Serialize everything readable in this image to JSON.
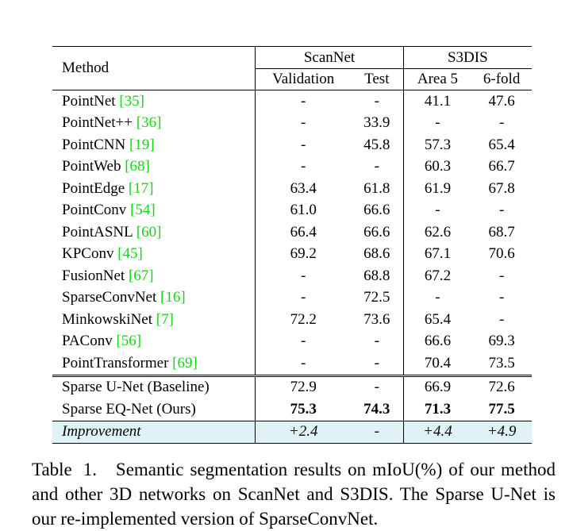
{
  "header": {
    "method": "Method",
    "scannet": "ScanNet",
    "s3dis": "S3DIS",
    "validation": "Validation",
    "test": "Test",
    "area5": "Area 5",
    "sixfold": "6-fold"
  },
  "rows": [
    {
      "name": "PointNet",
      "cite": "[35]",
      "val": "-",
      "test": "-",
      "a5": "41.1",
      "f6": "47.6"
    },
    {
      "name": "PointNet++",
      "cite": "[36]",
      "val": "-",
      "test": "33.9",
      "a5": "-",
      "f6": "-"
    },
    {
      "name": "PointCNN",
      "cite": "[19]",
      "val": "-",
      "test": "45.8",
      "a5": "57.3",
      "f6": "65.4"
    },
    {
      "name": "PointWeb",
      "cite": "[68]",
      "val": "-",
      "test": "-",
      "a5": "60.3",
      "f6": "66.7"
    },
    {
      "name": "PointEdge",
      "cite": "[17]",
      "val": "63.4",
      "test": "61.8",
      "a5": "61.9",
      "f6": "67.8"
    },
    {
      "name": "PointConv",
      "cite": "[54]",
      "val": "61.0",
      "test": "66.6",
      "a5": "-",
      "f6": "-"
    },
    {
      "name": "PointASNL",
      "cite": "[60]",
      "val": "66.4",
      "test": "66.6",
      "a5": "62.6",
      "f6": "68.7"
    },
    {
      "name": "KPConv",
      "cite": "[45]",
      "val": "69.2",
      "test": "68.6",
      "a5": "67.1",
      "f6": "70.6"
    },
    {
      "name": "FusionNet",
      "cite": "[67]",
      "val": "-",
      "test": "68.8",
      "a5": "67.2",
      "f6": "-"
    },
    {
      "name": "SparseConvNet",
      "cite": "[16]",
      "val": "-",
      "test": "72.5",
      "a5": "-",
      "f6": "-"
    },
    {
      "name": "MinkowskiNet",
      "cite": "[7]",
      "val": "72.2",
      "test": "73.6",
      "a5": "65.4",
      "f6": "-"
    },
    {
      "name": "PAConv",
      "cite": "[56]",
      "val": "-",
      "test": "-",
      "a5": "66.6",
      "f6": "69.3"
    },
    {
      "name": "PointTransformer",
      "cite": "[69]",
      "val": "-",
      "test": "-",
      "a5": "70.4",
      "f6": "73.5"
    }
  ],
  "baseline": {
    "name": "Sparse U-Net (Baseline)",
    "val": "72.9",
    "test": "-",
    "a5": "66.9",
    "f6": "72.6"
  },
  "ours": {
    "name": "Sparse EQ-Net (Ours)",
    "val": "75.3",
    "test": "74.3",
    "a5": "71.3",
    "f6": "77.5"
  },
  "improvement": {
    "name": "Improvement",
    "val": "+2.4",
    "test": "-",
    "a5": "+4.4",
    "f6": "+4.9"
  },
  "caption": {
    "label": "Table 1.",
    "text": "Semantic segmentation results on mIoU(%) of our method and other 3D networks on ScanNet and S3DIS. The Sparse U-Net is our re-implemented version of SparseConvNet."
  }
}
